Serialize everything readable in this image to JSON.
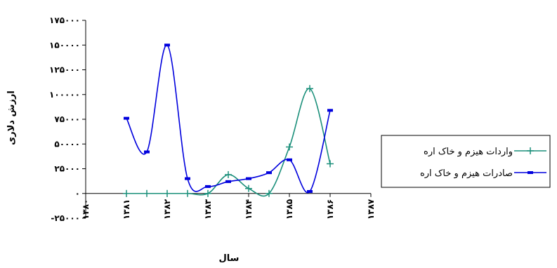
{
  "chart_data": {
    "type": "line",
    "title": "",
    "xlabel": "سال",
    "ylabel": "ارزش دلاری",
    "ylim": [
      -25000,
      175000
    ],
    "yticks": [
      -25000,
      0,
      25000,
      50000,
      75000,
      100000,
      125000,
      150000,
      175000
    ],
    "ytick_labels": [
      "-۲۵۰۰۰",
      "۰",
      "۲۵۰۰۰",
      "۵۰۰۰۰",
      "۷۵۰۰۰",
      "۱۰۰۰۰۰",
      "۱۲۵۰۰۰",
      "۱۵۰۰۰۰",
      "۱۷۵۰۰۰"
    ],
    "x_tick_labels": [
      "۱۳۸۰",
      "۱۳۸۱",
      "۱۳۸۲",
      "۱۳۸۳",
      "۱۳۸۴",
      "۱۳۸۵",
      "۱۳۸۶",
      "۱۳۸۷"
    ],
    "x_range": [
      0,
      14
    ],
    "grid": false,
    "legend_position": "right",
    "series": [
      {
        "name": "واردات هیزم و خاک اره",
        "color": "#1a8f7a",
        "marker": "plus",
        "x": [
          2,
          3,
          4,
          5,
          6,
          7,
          8,
          9,
          10,
          11,
          12
        ],
        "values": [
          0,
          0,
          0,
          0,
          0,
          19000,
          5000,
          0,
          47000,
          106000,
          30000
        ]
      },
      {
        "name": "صادرات هیزم و خاک اره",
        "color": "#0000dd",
        "marker": "dash",
        "x": [
          2,
          3,
          4,
          5,
          6,
          7,
          8,
          9,
          10,
          11,
          12
        ],
        "values": [
          76000,
          42000,
          150000,
          15000,
          7000,
          12000,
          15000,
          21000,
          34000,
          2000,
          84000
        ]
      }
    ]
  }
}
